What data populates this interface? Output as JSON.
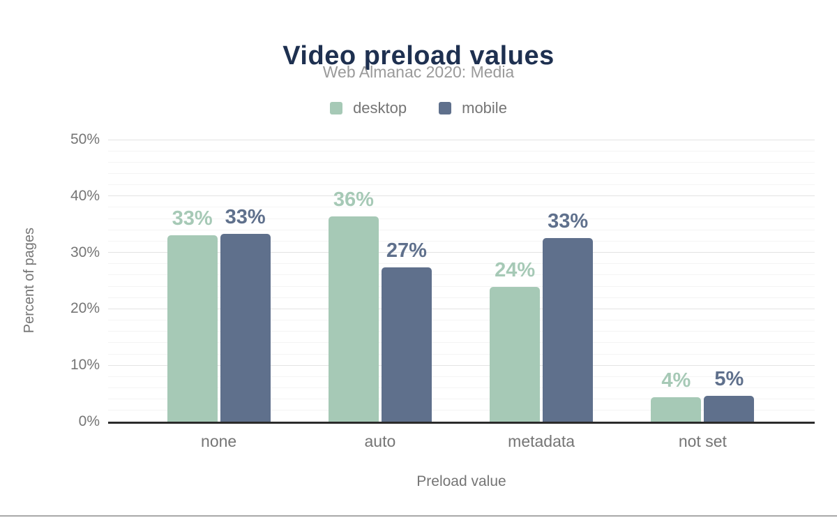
{
  "header": {
    "title_color": "#1e3050",
    "subtitle_color": "#9a9a9a"
  },
  "chart_data": {
    "type": "bar",
    "title": "Video preload values",
    "subtitle": "Web Almanac 2020: Media",
    "categories": [
      "none",
      "auto",
      "metadata",
      "not set"
    ],
    "series": [
      {
        "name": "desktop",
        "color": "#a6c9b6",
        "values": [
          33,
          36,
          24,
          4
        ],
        "precise_values": [
          33.0,
          36.4,
          23.9,
          4.3
        ],
        "labels": [
          "33%",
          "36%",
          "24%",
          "4%"
        ]
      },
      {
        "name": "mobile",
        "color": "#5f708c",
        "values": [
          33,
          27,
          33,
          5
        ],
        "precise_values": [
          33.3,
          27.3,
          32.5,
          4.6
        ],
        "labels": [
          "33%",
          "27%",
          "33%",
          "5%"
        ]
      }
    ],
    "xlabel": "Preload value",
    "ylabel": "Percent of pages",
    "ylim": [
      0,
      50
    ],
    "yticks": [
      0,
      10,
      20,
      30,
      40,
      50
    ],
    "ytick_labels": [
      "0%",
      "10%",
      "20%",
      "30%",
      "40%",
      "50%"
    ],
    "minor_grid_step_percent": 2,
    "grid": true,
    "legend_position": "top",
    "axis_label_color": "#757575",
    "axis_line_color": "#2b2b2b"
  }
}
